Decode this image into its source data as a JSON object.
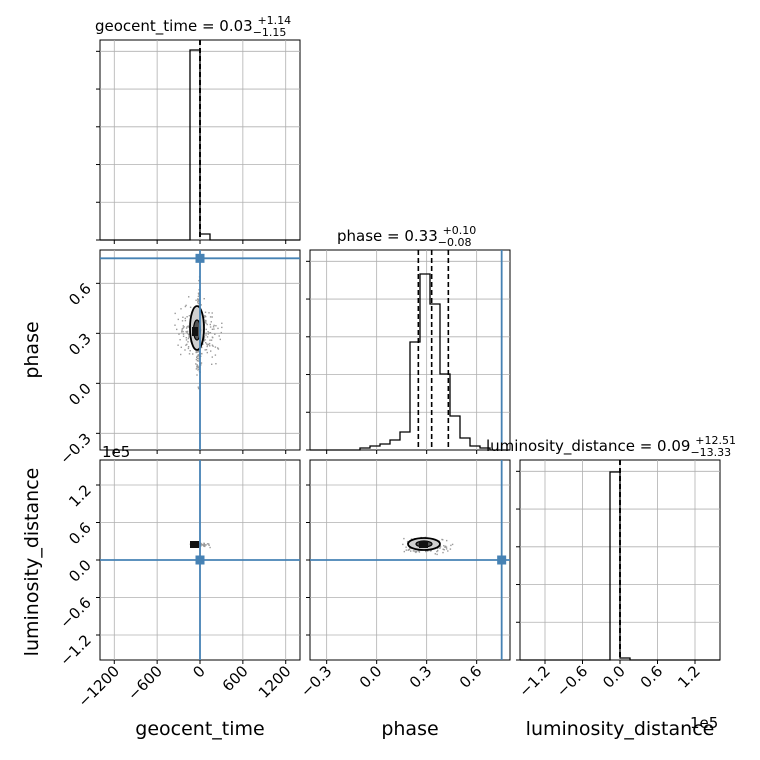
{
  "chart_data": {
    "type": "corner",
    "parameters": [
      "geocent_time",
      "phase",
      "luminosity_distance"
    ],
    "colors": {
      "truth": "#4682b4",
      "hist": "#000000",
      "scatter": "#9a9a9a",
      "grid": "#b0b0b0"
    },
    "titles": [
      {
        "param": "geocent_time",
        "prefix": "geocent_time = 0.03",
        "plus": "+1.14",
        "minus": "−1.15"
      },
      {
        "param": "phase",
        "prefix": "phase = 0.33",
        "plus": "+0.10",
        "minus": "−0.08"
      },
      {
        "param": "luminosity_distance",
        "prefix": "luminosity_distance = 0.09",
        "plus": "+12.51",
        "minus": "−13.33"
      }
    ],
    "axis_labels": {
      "x": [
        "geocent_time",
        "phase",
        "luminosity_distance"
      ],
      "y": [
        "phase",
        "luminosity_distance"
      ]
    },
    "ranges": {
      "geocent_time": [
        -1400,
        1400
      ],
      "phase": [
        -0.4,
        0.8
      ],
      "luminosity_distance": [
        -160000,
        160000
      ]
    },
    "ticks": {
      "geocent_time": [
        -1200,
        -600,
        0,
        600,
        1200
      ],
      "phase": [
        -0.3,
        0.0,
        0.3,
        0.6
      ],
      "luminosity_distance": [
        -1.2,
        -0.6,
        0.0,
        0.6,
        1.2
      ]
    },
    "tick_labels": {
      "geocent_time": [
        "−1200",
        "−600",
        "0",
        "600",
        "1200"
      ],
      "phase": [
        "−0.3",
        "0.0",
        "0.3",
        "0.6"
      ],
      "luminosity_distance": [
        "−1.2",
        "−0.6",
        "0.0",
        "0.6",
        "1.2"
      ]
    },
    "offset_text": "1e5",
    "truths": {
      "geocent_time": 0,
      "phase": 0.75,
      "luminosity_distance": 0
    },
    "quantiles": {
      "geocent_time": [
        -1.12,
        0.03,
        1.17
      ],
      "phase": [
        0.25,
        0.33,
        0.43
      ],
      "luminosity_distance": [
        -13.24,
        0.09,
        12.6
      ]
    },
    "hist_geocent_time": {
      "edges": [
        -1400,
        -1260,
        -1120,
        -980,
        -840,
        -700,
        -560,
        -420,
        -280,
        -140,
        0,
        140,
        280,
        420,
        560,
        700,
        840,
        980,
        1120,
        1260,
        1400
      ],
      "density": [
        0,
        0,
        0,
        0,
        0,
        0,
        0,
        0,
        0,
        0.95,
        0.03,
        0,
        0,
        0,
        0,
        0,
        0,
        0,
        0,
        0
      ]
    },
    "hist_phase": {
      "edges": [
        -0.4,
        -0.34,
        -0.28,
        -0.22,
        -0.16,
        -0.1,
        -0.04,
        0.02,
        0.08,
        0.14,
        0.2,
        0.26,
        0.32,
        0.38,
        0.44,
        0.5,
        0.56,
        0.62,
        0.68,
        0.74,
        0.8
      ],
      "density": [
        0,
        0,
        0,
        0,
        0,
        0.01,
        0.02,
        0.03,
        0.05,
        0.09,
        0.54,
        0.88,
        0.73,
        0.38,
        0.17,
        0.06,
        0.02,
        0.01,
        0,
        0
      ]
    },
    "hist_luminosity_distance": {
      "edges": [
        -160000,
        -144000,
        -128000,
        -112000,
        -96000,
        -80000,
        -64000,
        -48000,
        -32000,
        -16000,
        0,
        16000,
        32000,
        48000,
        64000,
        80000,
        96000,
        112000,
        128000,
        144000,
        160000
      ],
      "density": [
        0,
        0,
        0,
        0,
        0,
        0,
        0,
        0,
        0,
        0.94,
        0.01,
        0,
        0,
        0,
        0,
        0,
        0,
        0,
        0,
        0
      ]
    }
  }
}
